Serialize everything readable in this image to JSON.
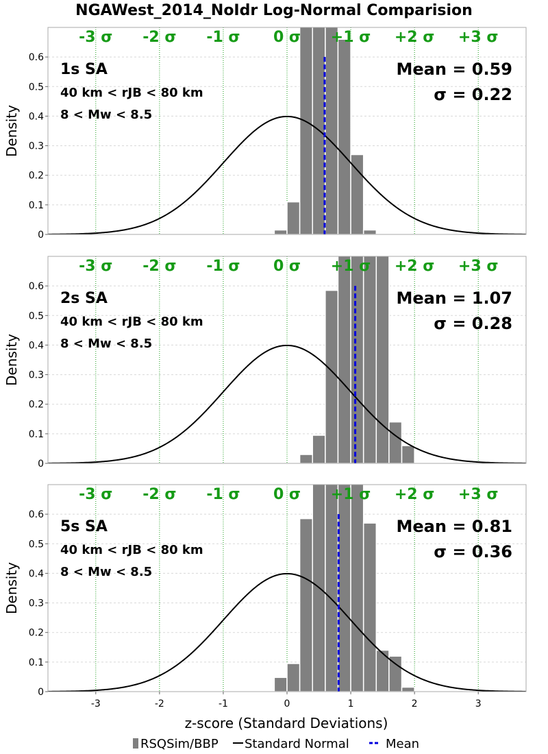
{
  "title": "NGAWest_2014_NoIdr Log-Normal Comparision",
  "xlabel": "z-score (Standard Deviations)",
  "ylabel": "Density",
  "legend": {
    "hist": "RSQSim/BBP",
    "normal": "Standard Normal",
    "mean": "Mean"
  },
  "colors": {
    "bars": "#808080",
    "normal": "#000000",
    "mean": "#0000dd",
    "sigma": "#169b16",
    "grid": "#d8d8d8"
  },
  "chart_data": [
    {
      "type": "bar",
      "period": "1s SA",
      "distance": "40 km < rJB < 80 km",
      "magnitude": "8 < Mw < 8.5",
      "mean_label": "Mean = 0.59",
      "sigma_label": "σ = 0.22",
      "mean": 0.59,
      "bin_width": 0.2,
      "bin_centers": [
        -0.1,
        0.1,
        0.3,
        0.5,
        0.7,
        0.9,
        1.1,
        1.3
      ],
      "values": [
        0.015,
        0.11,
        0.98,
        1.0,
        1.0,
        0.66,
        0.27,
        0.015
      ],
      "xlim": [
        -3.75,
        3.75
      ],
      "ylim": [
        0,
        0.7
      ],
      "xticks": [
        -3,
        -2,
        -1,
        0,
        1,
        2,
        3
      ],
      "yticks": [
        0,
        0.1,
        0.2,
        0.3,
        0.4,
        0.5,
        0.6
      ],
      "sigma_lines": [
        -3,
        -2,
        -1,
        0,
        1,
        2,
        3
      ],
      "sigma_labels": [
        "-3 σ",
        "-2 σ",
        "-1 σ",
        "0 σ",
        "+1 σ",
        "+2 σ",
        "+3 σ"
      ]
    },
    {
      "type": "bar",
      "period": "2s SA",
      "distance": "40 km < rJB < 80 km",
      "magnitude": "8 < Mw < 8.5",
      "mean_label": "Mean = 1.07",
      "sigma_label": "σ = 0.28",
      "mean": 1.07,
      "bin_width": 0.2,
      "bin_centers": [
        0.3,
        0.5,
        0.7,
        0.9,
        1.1,
        1.3,
        1.5,
        1.7,
        1.9
      ],
      "values": [
        0.03,
        0.095,
        0.585,
        1.0,
        1.0,
        1.0,
        0.95,
        0.14,
        0.06
      ],
      "xlim": [
        -3.75,
        3.75
      ],
      "ylim": [
        0,
        0.7
      ],
      "xticks": [
        -3,
        -2,
        -1,
        0,
        1,
        2,
        3
      ],
      "yticks": [
        0,
        0.1,
        0.2,
        0.3,
        0.4,
        0.5,
        0.6
      ],
      "sigma_lines": [
        -3,
        -2,
        -1,
        0,
        1,
        2,
        3
      ],
      "sigma_labels": [
        "-3 σ",
        "-2 σ",
        "-1 σ",
        "0 σ",
        "+1 σ",
        "+2 σ",
        "+3 σ"
      ]
    },
    {
      "type": "bar",
      "period": "5s SA",
      "distance": "40 km < rJB < 80 km",
      "magnitude": "8 < Mw < 8.5",
      "mean_label": "Mean = 0.81",
      "sigma_label": "σ = 0.36",
      "mean": 0.81,
      "bin_width": 0.2,
      "bin_centers": [
        -0.1,
        0.1,
        0.3,
        0.5,
        0.7,
        0.9,
        1.1,
        1.3,
        1.5,
        1.7
      ],
      "values": [
        0.048,
        0.095,
        0.585,
        1.0,
        1.0,
        0.72,
        0.72,
        0.57,
        0.14,
        0.12
      ],
      "extra_bin": {
        "center": 1.9,
        "value": 0.015
      },
      "xlim": [
        -3.75,
        3.75
      ],
      "ylim": [
        0,
        0.7
      ],
      "xticks": [
        -3,
        -2,
        -1,
        0,
        1,
        2,
        3
      ],
      "yticks": [
        0,
        0.1,
        0.2,
        0.3,
        0.4,
        0.5,
        0.6
      ],
      "sigma_lines": [
        -3,
        -2,
        -1,
        0,
        1,
        2,
        3
      ],
      "sigma_labels": [
        "-3 σ",
        "-2 σ",
        "-1 σ",
        "0 σ",
        "+1 σ",
        "+2 σ",
        "+3 σ"
      ]
    }
  ]
}
